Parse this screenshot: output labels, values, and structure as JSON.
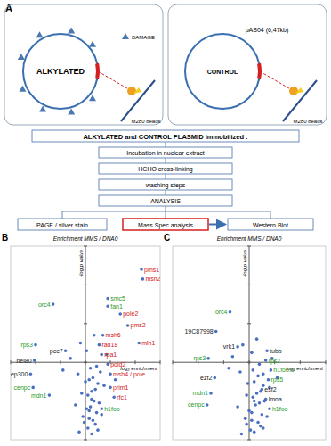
{
  "diagram": {
    "label": "A",
    "alkylated": {
      "label": "ALKYLATED",
      "damage": "DAMAGE",
      "beads": "M280 beads"
    },
    "control": {
      "label": "CONTROL",
      "plasmid": "pAS04 (6,47kb)",
      "beads": "M280 beads"
    },
    "header": "ALKYLATED and CONTROL PLASMID immobilized :",
    "steps": [
      "Incubation in nuclear extract",
      "HCHO cross-linking",
      "washing steps",
      "ANALYSIS"
    ],
    "analysis": [
      "PAGE / silver stain",
      "Mass Spec analysis",
      "Western Blot"
    ]
  },
  "chart_data": [
    {
      "type": "scatter",
      "label": "B",
      "title": "Enrichment MMS / DNA0",
      "x_label": "log₂ enrichment",
      "y_label": "-log p value",
      "xlim": [
        -6,
        6
      ],
      "ylim": [
        -4,
        6
      ],
      "xticks": [
        -6,
        -4,
        -2,
        0,
        2,
        4,
        6
      ],
      "yticks": [
        -4,
        -2,
        0,
        2,
        4,
        6
      ],
      "tick_labels": false,
      "series": [
        {
          "color": "#4a6fc0",
          "marker": "circle",
          "x": [
            -0.5,
            0.2,
            0.5,
            0.8,
            1.0,
            -0.2,
            0.3,
            0.6,
            0.9,
            1.3,
            -0.8,
            0.1,
            0.4,
            0.7,
            1.1,
            -0.3,
            0.2,
            0.5,
            0.8,
            1.5,
            0,
            0.3,
            0.6,
            -0.6,
            1.2,
            0.4,
            0.9,
            -1.2,
            1.7,
            0.1,
            -0.4,
            0.7,
            2.4,
            -1.8,
            0.5,
            1.0,
            -0.1,
            0.3
          ],
          "values": [
            -3.6,
            -3.4,
            -3.7,
            -3.2,
            -3.5,
            -2.8,
            -2.9,
            -3.0,
            -2.6,
            -2.7,
            -2.2,
            -2.4,
            -2.3,
            -2.0,
            -2.1,
            -1.6,
            -1.7,
            -1.5,
            -1.4,
            -1.2,
            -1.0,
            -0.9,
            -0.8,
            -0.6,
            -0.5,
            -0.3,
            -0.2,
            0.2,
            0.4,
            0.6,
            1.0,
            1.4,
            -0.9,
            -0.4,
            -1.9,
            -1.1,
            -3.1,
            -2.5
          ]
        },
        {
          "color": "#4a6fc0",
          "marker": "circle",
          "labels": [
            "pms1",
            "msh2",
            "smc5",
            "fan1",
            "pole2",
            "pms2",
            "msh6",
            "mlh1",
            "rad18",
            "rpa1",
            "pold2",
            "msh4 / pole",
            "prim1",
            "rfc1",
            "h1foo",
            "orc4",
            "rps3",
            "pcc7",
            "nel80",
            "ep300",
            "cenpc",
            "mdn1"
          ],
          "x": [
            4.5,
            4.6,
            1.8,
            1.8,
            2.8,
            3.4,
            1.4,
            4.3,
            1.1,
            1.3,
            1.8,
            2.0,
            2.0,
            2.3,
            1.3,
            -2.6,
            -4.0,
            -1.6,
            -4.1,
            -4.4,
            -4.2,
            -2.9
          ],
          "values": [
            4.8,
            4.3,
            3.3,
            2.9,
            2.5,
            1.9,
            1.4,
            1.0,
            0.9,
            0.4,
            -0.1,
            -0.6,
            -1.3,
            -1.8,
            -2.4,
            3.0,
            0.9,
            0.6,
            0.1,
            -0.6,
            -1.3,
            -1.7
          ],
          "colors": [
            "#d42020",
            "#d42020",
            "#2a9a2a",
            "#2a9a2a",
            "#d42020",
            "#d42020",
            "#d42020",
            "#d42020",
            "#d42020",
            "#d42020",
            "#d42020",
            "#d42020",
            "#d42020",
            "#d42020",
            "#2a9a2a",
            "#2a9a2a",
            "#2a9a2a",
            "#222222",
            "#222222",
            "#222222",
            "#2a9a2a",
            "#2a9a2a"
          ]
        }
      ]
    },
    {
      "type": "scatter",
      "label": "C",
      "title": "Enrichment MMS / DNA0",
      "x_label": "log₂ enrichment",
      "y_label": "-log p value",
      "xlim": [
        -6,
        6
      ],
      "ylim": [
        -4,
        6
      ],
      "xticks": [
        -6,
        -4,
        -2,
        0,
        2,
        4,
        6
      ],
      "yticks": [
        -4,
        -2,
        0,
        2,
        4,
        6
      ],
      "tick_labels": false,
      "series": [
        {
          "color": "#4a6fc0",
          "marker": "circle",
          "x": [
            -0.6,
            0.1,
            0.4,
            0.9,
            1.1,
            -0.3,
            0.2,
            0.7,
            1.0,
            1.4,
            -0.9,
            0.0,
            0.5,
            0.8,
            1.2,
            -0.2,
            0.3,
            0.6,
            0.9,
            1.6,
            -0.1,
            0.4,
            0.7,
            -0.7,
            1.1,
            0.3,
            0.8,
            -1.3,
            1.8,
            0.2,
            -0.5,
            0.6,
            2.2,
            -1.6,
            0.4,
            1.1,
            -0.2,
            0.2
          ],
          "values": [
            -3.7,
            -3.5,
            -3.6,
            -3.3,
            -3.4,
            -2.9,
            -3.0,
            -3.1,
            -2.7,
            -2.8,
            -2.3,
            -2.5,
            -2.2,
            -2.1,
            -2.0,
            -1.7,
            -1.8,
            -1.6,
            -1.5,
            -1.3,
            -1.1,
            -1.0,
            -0.7,
            -0.5,
            -0.6,
            -0.4,
            -0.1,
            0.3,
            0.2,
            0.5,
            0.9,
            1.2,
            -0.8,
            -0.3,
            -2.0,
            -1.2,
            -3.2,
            -2.6
          ]
        },
        {
          "color": "#4a6fc0",
          "marker": "circle",
          "labels": [
            "orc4",
            "19C87998",
            "vrk1",
            "rps3",
            "tubb",
            "rps2",
            "h1foo.5",
            "rps5",
            "esf2",
            "lmna",
            "h1foo",
            "ezf2",
            "mdn1",
            "cenpc"
          ],
          "x": [
            -1.5,
            -2.6,
            -0.9,
            -3.2,
            1.4,
            1.3,
            1.7,
            1.5,
            1.0,
            1.3,
            1.6,
            -2.7,
            -3.0,
            -3.3
          ],
          "values": [
            2.6,
            1.6,
            0.8,
            0.2,
            0.6,
            0.1,
            -0.4,
            -0.9,
            -1.4,
            -1.9,
            -2.4,
            -0.8,
            -1.6,
            -2.2
          ],
          "colors": [
            "#2a9a2a",
            "#222222",
            "#222222",
            "#2a9a2a",
            "#222222",
            "#2a9a2a",
            "#2a9a2a",
            "#2a9a2a",
            "#222222",
            "#222222",
            "#2a9a2a",
            "#222222",
            "#2a9a2a",
            "#2a9a2a"
          ]
        }
      ]
    }
  ]
}
